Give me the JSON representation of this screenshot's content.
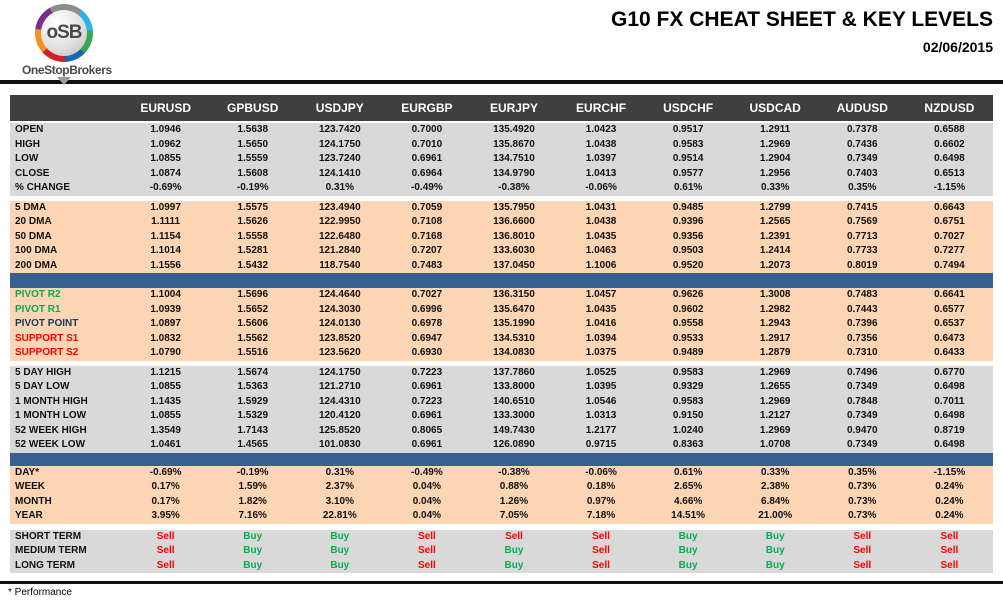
{
  "logo": {
    "text": "oSB",
    "subtext": "OneStopBrokers"
  },
  "header": {
    "title": "G10 FX CHEAT SHEET & KEY LEVELS",
    "date": "02/06/2015"
  },
  "footnote": "* Performance",
  "colors": {
    "header_bg": "#3F3F3F",
    "gray_band": "#D9D9D9",
    "peach_band": "#FCD5B4",
    "separator_bar": "#376092",
    "buy": "#00B050",
    "sell": "#FF0000",
    "pivot_resistance": "#00B050",
    "pivot_point": "#17375E",
    "support": "#FF0000"
  },
  "columns": [
    "EURUSD",
    "GPBUSD",
    "USDJPY",
    "EURGBP",
    "EURJPY",
    "EURCHF",
    "USDCHF",
    "USDCAD",
    "AUDUSD",
    "NZDUSD"
  ],
  "sections": [
    {
      "type": "gray",
      "rows": [
        {
          "label": "OPEN",
          "values": [
            "1.0946",
            "1.5638",
            "123.7420",
            "0.7000",
            "135.4920",
            "1.0423",
            "0.9517",
            "1.2911",
            "0.7378",
            "0.6588"
          ]
        },
        {
          "label": "HIGH",
          "values": [
            "1.0962",
            "1.5650",
            "124.1750",
            "0.7010",
            "135.8670",
            "1.0438",
            "0.9583",
            "1.2969",
            "0.7436",
            "0.6602"
          ]
        },
        {
          "label": "LOW",
          "values": [
            "1.0855",
            "1.5559",
            "123.7240",
            "0.6961",
            "134.7510",
            "1.0397",
            "0.9514",
            "1.2904",
            "0.7349",
            "0.6498"
          ]
        },
        {
          "label": "CLOSE",
          "values": [
            "1.0874",
            "1.5608",
            "124.1410",
            "0.6964",
            "134.9790",
            "1.0413",
            "0.9577",
            "1.2956",
            "0.7403",
            "0.6513"
          ]
        },
        {
          "label": "% CHANGE",
          "values": [
            "-0.69%",
            "-0.19%",
            "0.31%",
            "-0.49%",
            "-0.38%",
            "-0.06%",
            "0.61%",
            "0.33%",
            "0.35%",
            "-1.15%"
          ]
        }
      ]
    },
    {
      "type": "gap",
      "height": 5
    },
    {
      "type": "peach",
      "rows": [
        {
          "label": "5 DMA",
          "values": [
            "1.0997",
            "1.5575",
            "123.4940",
            "0.7059",
            "135.7950",
            "1.0431",
            "0.9485",
            "1.2799",
            "0.7415",
            "0.6643"
          ]
        },
        {
          "label": "20 DMA",
          "values": [
            "1.1111",
            "1.5626",
            "122.9950",
            "0.7108",
            "136.6600",
            "1.0438",
            "0.9396",
            "1.2565",
            "0.7569",
            "0.6751"
          ]
        },
        {
          "label": "50 DMA",
          "values": [
            "1.1154",
            "1.5558",
            "122.6480",
            "0.7168",
            "136.8010",
            "1.0435",
            "0.9356",
            "1.2391",
            "0.7713",
            "0.7027"
          ]
        },
        {
          "label": "100 DMA",
          "values": [
            "1.1014",
            "1.5281",
            "121.2840",
            "0.7207",
            "133.6030",
            "1.0463",
            "0.9503",
            "1.2414",
            "0.7733",
            "0.7277"
          ]
        },
        {
          "label": "200 DMA",
          "values": [
            "1.1556",
            "1.5432",
            "118.7540",
            "0.7483",
            "137.0450",
            "1.1006",
            "0.9520",
            "1.2073",
            "0.8019",
            "0.7494"
          ]
        }
      ]
    },
    {
      "type": "bar",
      "height": 15
    },
    {
      "type": "peach",
      "rows": [
        {
          "label": "PIVOT R2",
          "label_color": "#00B050",
          "values": [
            "1.1004",
            "1.5696",
            "124.4640",
            "0.7027",
            "136.3150",
            "1.0457",
            "0.9626",
            "1.3008",
            "0.7483",
            "0.6641"
          ]
        },
        {
          "label": "PIVOT R1",
          "label_color": "#00B050",
          "values": [
            "1.0939",
            "1.5652",
            "124.3030",
            "0.6996",
            "135.6470",
            "1.0435",
            "0.9602",
            "1.2982",
            "0.7443",
            "0.6577"
          ]
        },
        {
          "label": "PIVOT POINT",
          "label_color": "#17375E",
          "values": [
            "1.0897",
            "1.5606",
            "124.0130",
            "0.6978",
            "135.1990",
            "1.0416",
            "0.9558",
            "1.2943",
            "0.7396",
            "0.6537"
          ]
        },
        {
          "label": "SUPPORT S1",
          "label_color": "#FF0000",
          "values": [
            "1.0832",
            "1.5562",
            "123.8520",
            "0.6947",
            "134.5310",
            "1.0394",
            "0.9533",
            "1.2917",
            "0.7356",
            "0.6473"
          ]
        },
        {
          "label": "SUPPORT S2",
          "label_color": "#FF0000",
          "values": [
            "1.0790",
            "1.5516",
            "123.5620",
            "0.6930",
            "134.0830",
            "1.0375",
            "0.9489",
            "1.2879",
            "0.7310",
            "0.6433"
          ]
        }
      ]
    },
    {
      "type": "gap",
      "height": 5
    },
    {
      "type": "gray",
      "rows": [
        {
          "label": "5 DAY HIGH",
          "values": [
            "1.1215",
            "1.5674",
            "124.1750",
            "0.7223",
            "137.7860",
            "1.0525",
            "0.9583",
            "1.2969",
            "0.7496",
            "0.6770"
          ]
        },
        {
          "label": "5 DAY LOW",
          "values": [
            "1.0855",
            "1.5363",
            "121.2710",
            "0.6961",
            "133.8000",
            "1.0395",
            "0.9329",
            "1.2655",
            "0.7349",
            "0.6498"
          ]
        },
        {
          "label": "1 MONTH HIGH",
          "values": [
            "1.1435",
            "1.5929",
            "124.4310",
            "0.7223",
            "140.6510",
            "1.0546",
            "0.9583",
            "1.2969",
            "0.7848",
            "0.7011"
          ]
        },
        {
          "label": "1 MONTH LOW",
          "values": [
            "1.0855",
            "1.5329",
            "120.4120",
            "0.6961",
            "133.3000",
            "1.0313",
            "0.9150",
            "1.2127",
            "0.7349",
            "0.6498"
          ]
        },
        {
          "label": "52 WEEK HIGH",
          "values": [
            "1.3549",
            "1.7143",
            "125.8520",
            "0.8065",
            "149.7430",
            "1.2177",
            "1.0240",
            "1.2969",
            "0.9470",
            "0.8719"
          ]
        },
        {
          "label": "52 WEEK LOW",
          "values": [
            "1.0461",
            "1.4565",
            "101.0830",
            "0.6961",
            "126.0890",
            "0.9715",
            "0.8363",
            "1.0708",
            "0.7349",
            "0.6498"
          ]
        }
      ]
    },
    {
      "type": "bar",
      "height": 13
    },
    {
      "type": "peach",
      "rows": [
        {
          "label": "DAY*",
          "values": [
            "-0.69%",
            "-0.19%",
            "0.31%",
            "-0.49%",
            "-0.38%",
            "-0.06%",
            "0.61%",
            "0.33%",
            "0.35%",
            "-1.15%"
          ]
        },
        {
          "label": "WEEK",
          "values": [
            "0.17%",
            "1.59%",
            "2.37%",
            "0.04%",
            "0.88%",
            "0.18%",
            "2.65%",
            "2.38%",
            "0.73%",
            "0.24%"
          ]
        },
        {
          "label": "MONTH",
          "values": [
            "0.17%",
            "1.82%",
            "3.10%",
            "0.04%",
            "1.26%",
            "0.97%",
            "4.66%",
            "6.84%",
            "0.73%",
            "0.24%"
          ]
        },
        {
          "label": "YEAR",
          "values": [
            "3.95%",
            "7.16%",
            "22.81%",
            "0.04%",
            "7.05%",
            "7.18%",
            "14.51%",
            "21.00%",
            "0.73%",
            "0.24%"
          ]
        }
      ]
    },
    {
      "type": "gap",
      "height": 6
    },
    {
      "type": "gray",
      "rows": [
        {
          "label": "SHORT TERM",
          "values": [
            "Sell",
            "Buy",
            "Buy",
            "Sell",
            "Sell",
            "Sell",
            "Buy",
            "Buy",
            "Sell",
            "Sell"
          ]
        },
        {
          "label": "MEDIUM TERM",
          "values": [
            "Sell",
            "Buy",
            "Buy",
            "Sell",
            "Buy",
            "Sell",
            "Buy",
            "Buy",
            "Sell",
            "Sell"
          ]
        },
        {
          "label": "LONG TERM",
          "values": [
            "Sell",
            "Buy",
            "Buy",
            "Sell",
            "Buy",
            "Sell",
            "Buy",
            "Buy",
            "Sell",
            "Sell"
          ]
        }
      ]
    }
  ]
}
